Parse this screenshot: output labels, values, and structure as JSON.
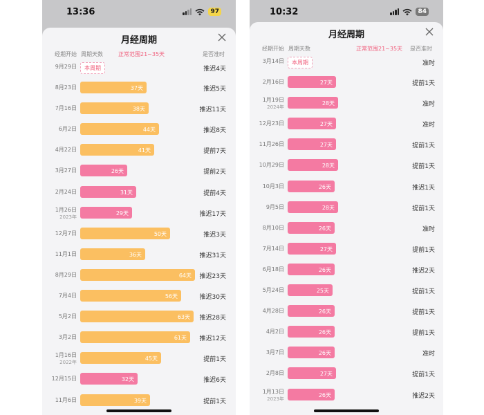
{
  "left": {
    "status": {
      "time": "13:36",
      "battery": "97"
    },
    "title": "月经周期",
    "columns": {
      "start": "经期开始",
      "days": "周期天数",
      "range": "正常范围21~35天",
      "ontime": "是否准时"
    },
    "current": {
      "date": "9月29日",
      "label": "本周期",
      "status": "推迟4天"
    },
    "rows": [
      {
        "date": "8月23日",
        "year": "",
        "days": 37,
        "label": "37天",
        "color": "orange",
        "status": "推迟5天"
      },
      {
        "date": "7月16日",
        "year": "",
        "days": 38,
        "label": "38天",
        "color": "orange",
        "status": "推迟11天"
      },
      {
        "date": "6月2日",
        "year": "",
        "days": 44,
        "label": "44天",
        "color": "orange",
        "status": "推迟8天"
      },
      {
        "date": "4月22日",
        "year": "",
        "days": 41,
        "label": "41天",
        "color": "orange",
        "status": "提前7天"
      },
      {
        "date": "3月27日",
        "year": "",
        "days": 26,
        "label": "26天",
        "color": "pink",
        "status": "提前2天"
      },
      {
        "date": "2月24日",
        "year": "",
        "days": 31,
        "label": "31天",
        "color": "pink",
        "status": "提前4天"
      },
      {
        "date": "1月26日",
        "year": "2023年",
        "days": 29,
        "label": "29天",
        "color": "pink",
        "status": "推迟17天"
      },
      {
        "date": "12月7日",
        "year": "",
        "days": 50,
        "label": "50天",
        "color": "orange",
        "status": "推迟3天"
      },
      {
        "date": "11月1日",
        "year": "",
        "days": 36,
        "label": "36天",
        "color": "orange",
        "status": "推迟31天"
      },
      {
        "date": "8月29日",
        "year": "",
        "days": 64,
        "label": "64天",
        "color": "orange",
        "status": "推迟23天"
      },
      {
        "date": "7月4日",
        "year": "",
        "days": 56,
        "label": "56天",
        "color": "orange",
        "status": "推迟30天"
      },
      {
        "date": "5月2日",
        "year": "",
        "days": 63,
        "label": "63天",
        "color": "orange",
        "status": "推迟28天"
      },
      {
        "date": "3月2日",
        "year": "",
        "days": 61,
        "label": "61天",
        "color": "orange",
        "status": "推迟12天"
      },
      {
        "date": "1月16日",
        "year": "2022年",
        "days": 45,
        "label": "45天",
        "color": "orange",
        "status": "提前1天"
      },
      {
        "date": "12月15日",
        "year": "",
        "days": 32,
        "label": "32天",
        "color": "pink",
        "status": "推迟6天"
      },
      {
        "date": "11月6日",
        "year": "",
        "days": 39,
        "label": "39天",
        "color": "orange",
        "status": "提前1天"
      }
    ]
  },
  "right": {
    "status": {
      "time": "10:32",
      "battery": "84"
    },
    "title": "月经周期",
    "columns": {
      "start": "经期开始",
      "days": "周期天数",
      "range": "正常范围21~35天",
      "ontime": "是否准时"
    },
    "current": {
      "date": "3月14日",
      "label": "本周期",
      "status": "准时"
    },
    "rows": [
      {
        "date": "2月16日",
        "year": "",
        "days": 27,
        "label": "27天",
        "color": "pink",
        "status": "提前1天"
      },
      {
        "date": "1月19日",
        "year": "2024年",
        "days": 28,
        "label": "28天",
        "color": "pink",
        "status": "准时"
      },
      {
        "date": "12月23日",
        "year": "",
        "days": 27,
        "label": "27天",
        "color": "pink",
        "status": "准时"
      },
      {
        "date": "11月26日",
        "year": "",
        "days": 27,
        "label": "27天",
        "color": "pink",
        "status": "提前1天"
      },
      {
        "date": "10月29日",
        "year": "",
        "days": 28,
        "label": "28天",
        "color": "pink",
        "status": "提前1天"
      },
      {
        "date": "10月3日",
        "year": "",
        "days": 26,
        "label": "26天",
        "color": "pink",
        "status": "推迟1天"
      },
      {
        "date": "9月5日",
        "year": "",
        "days": 28,
        "label": "28天",
        "color": "pink",
        "status": "提前1天"
      },
      {
        "date": "8月10日",
        "year": "",
        "days": 26,
        "label": "26天",
        "color": "pink",
        "status": "准时"
      },
      {
        "date": "7月14日",
        "year": "",
        "days": 27,
        "label": "27天",
        "color": "pink",
        "status": "提前1天"
      },
      {
        "date": "6月18日",
        "year": "",
        "days": 26,
        "label": "26天",
        "color": "pink",
        "status": "推迟2天"
      },
      {
        "date": "5月24日",
        "year": "",
        "days": 25,
        "label": "25天",
        "color": "pink",
        "status": "提前1天"
      },
      {
        "date": "4月28日",
        "year": "",
        "days": 26,
        "label": "26天",
        "color": "pink",
        "status": "提前1天"
      },
      {
        "date": "4月2日",
        "year": "",
        "days": 26,
        "label": "26天",
        "color": "pink",
        "status": "提前1天"
      },
      {
        "date": "3月7日",
        "year": "",
        "days": 26,
        "label": "26天",
        "color": "pink",
        "status": "准时"
      },
      {
        "date": "2月8日",
        "year": "",
        "days": 27,
        "label": "27天",
        "color": "pink",
        "status": "提前1天"
      },
      {
        "date": "1月13日",
        "year": "2023年",
        "days": 26,
        "label": "26天",
        "color": "pink",
        "status": "推迟2天"
      }
    ]
  },
  "colors": {
    "orange": "#fbbf61",
    "pink": "#f47aa2",
    "accent": "#f0607d"
  },
  "icons": {
    "close": "close-icon",
    "signal": "signal-icon",
    "wifi": "wifi-icon",
    "battery": "battery-icon"
  }
}
